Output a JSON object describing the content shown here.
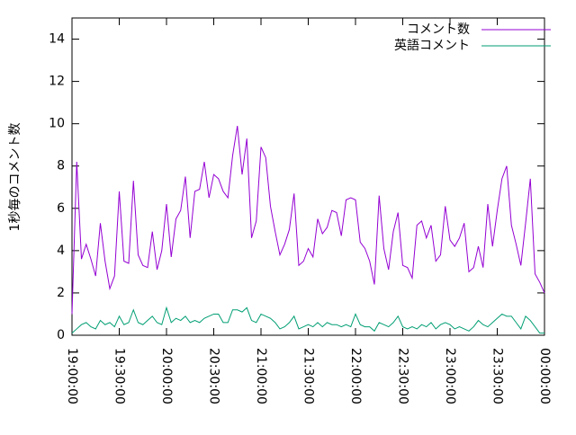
{
  "chart_data": {
    "type": "line",
    "y_label": "1秒毎のコメント数",
    "x": [
      "19:00:00",
      "19:03:00",
      "19:06:00",
      "19:09:00",
      "19:12:00",
      "19:15:00",
      "19:18:00",
      "19:21:00",
      "19:24:00",
      "19:27:00",
      "19:30:00",
      "19:33:00",
      "19:36:00",
      "19:39:00",
      "19:42:00",
      "19:45:00",
      "19:48:00",
      "19:51:00",
      "19:54:00",
      "19:57:00",
      "20:00:00",
      "20:03:00",
      "20:06:00",
      "20:09:00",
      "20:12:00",
      "20:15:00",
      "20:18:00",
      "20:21:00",
      "20:24:00",
      "20:27:00",
      "20:30:00",
      "20:33:00",
      "20:36:00",
      "20:39:00",
      "20:42:00",
      "20:45:00",
      "20:48:00",
      "20:51:00",
      "20:54:00",
      "20:57:00",
      "21:00:00",
      "21:03:00",
      "21:06:00",
      "21:09:00",
      "21:12:00",
      "21:15:00",
      "21:18:00",
      "21:21:00",
      "21:24:00",
      "21:27:00",
      "21:30:00",
      "21:33:00",
      "21:36:00",
      "21:39:00",
      "21:42:00",
      "21:45:00",
      "21:48:00",
      "21:51:00",
      "21:54:00",
      "21:57:00",
      "22:00:00",
      "22:03:00",
      "22:06:00",
      "22:09:00",
      "22:12:00",
      "22:15:00",
      "22:18:00",
      "22:21:00",
      "22:24:00",
      "22:27:00",
      "22:30:00",
      "22:33:00",
      "22:36:00",
      "22:39:00",
      "22:42:00",
      "22:45:00",
      "22:48:00",
      "22:51:00",
      "22:54:00",
      "22:57:00",
      "23:00:00",
      "23:03:00",
      "23:06:00",
      "23:09:00",
      "23:12:00",
      "23:15:00",
      "23:18:00",
      "23:21:00",
      "23:24:00",
      "23:27:00",
      "23:30:00",
      "23:33:00",
      "23:36:00",
      "23:39:00",
      "23:42:00",
      "23:45:00",
      "23:48:00",
      "23:51:00",
      "23:54:00",
      "23:57:00",
      "00:00:00"
    ],
    "series": [
      {
        "name": "コメント数",
        "color": "#9400d3",
        "values": [
          1.0,
          8.2,
          3.6,
          4.3,
          3.6,
          2.8,
          5.3,
          3.5,
          2.2,
          2.8,
          6.8,
          3.5,
          3.4,
          7.3,
          3.8,
          3.3,
          3.2,
          4.9,
          3.1,
          4.0,
          6.2,
          3.7,
          5.5,
          5.9,
          7.5,
          4.6,
          6.8,
          6.9,
          8.2,
          6.5,
          7.6,
          7.4,
          6.8,
          6.5,
          8.5,
          9.9,
          7.6,
          9.3,
          4.6,
          5.4,
          8.9,
          8.4,
          6.1,
          4.9,
          3.8,
          4.3,
          5.0,
          6.7,
          3.3,
          3.5,
          4.1,
          3.7,
          5.5,
          4.8,
          5.1,
          5.9,
          5.8,
          4.7,
          6.4,
          6.5,
          6.4,
          4.4,
          4.1,
          3.5,
          2.4,
          6.6,
          4.1,
          3.1,
          4.9,
          5.8,
          3.3,
          3.2,
          2.7,
          5.2,
          5.4,
          4.6,
          5.2,
          3.5,
          3.8,
          6.1,
          4.5,
          4.2,
          4.6,
          5.3,
          3.0,
          3.2,
          4.2,
          3.2,
          6.2,
          4.2,
          5.9,
          7.4,
          8.0,
          5.2,
          4.3,
          3.3,
          5.3,
          7.4,
          2.9,
          2.5,
          2.0
        ]
      },
      {
        "name": "英語コメント",
        "color": "#009e73",
        "values": [
          0.1,
          0.3,
          0.5,
          0.6,
          0.4,
          0.3,
          0.7,
          0.5,
          0.6,
          0.4,
          0.9,
          0.5,
          0.6,
          1.2,
          0.6,
          0.5,
          0.7,
          0.9,
          0.6,
          0.5,
          1.3,
          0.6,
          0.8,
          0.7,
          0.9,
          0.6,
          0.7,
          0.6,
          0.8,
          0.9,
          1.0,
          1.0,
          0.6,
          0.6,
          1.2,
          1.2,
          1.1,
          1.3,
          0.7,
          0.6,
          1.0,
          0.9,
          0.8,
          0.6,
          0.3,
          0.4,
          0.6,
          0.9,
          0.3,
          0.4,
          0.5,
          0.4,
          0.6,
          0.4,
          0.6,
          0.5,
          0.5,
          0.4,
          0.5,
          0.4,
          1.0,
          0.5,
          0.4,
          0.4,
          0.2,
          0.6,
          0.5,
          0.4,
          0.6,
          0.9,
          0.4,
          0.3,
          0.4,
          0.3,
          0.5,
          0.4,
          0.6,
          0.3,
          0.5,
          0.6,
          0.5,
          0.3,
          0.4,
          0.3,
          0.2,
          0.4,
          0.7,
          0.5,
          0.4,
          0.6,
          0.8,
          1.0,
          0.9,
          0.9,
          0.6,
          0.3,
          0.9,
          0.7,
          0.4,
          0.1,
          0.1
        ]
      }
    ],
    "xlim": [
      "19:00:00",
      "00:00:00"
    ],
    "xticks": [
      "19:00:00",
      "19:30:00",
      "20:00:00",
      "20:30:00",
      "21:00:00",
      "21:30:00",
      "22:00:00",
      "22:30:00",
      "23:00:00",
      "23:30:00",
      "00:00:00"
    ],
    "ylim": [
      0,
      15
    ],
    "yticks": [
      0,
      2,
      4,
      6,
      8,
      10,
      12,
      14
    ],
    "legend": "upper right"
  }
}
